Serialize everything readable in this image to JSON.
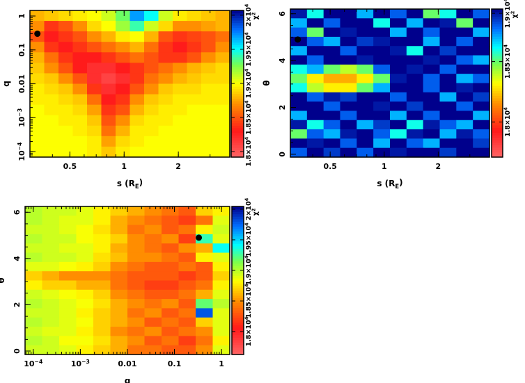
{
  "chart_data": [
    {
      "type": "heatmap",
      "title": "",
      "xlabel": "s (R_E)",
      "ylabel": "q",
      "xscale": "log",
      "yscale": "log",
      "xlim": [
        0.3,
        3.86
      ],
      "ylim": [
        6.9e-05,
        1.46
      ],
      "xticks": [
        {
          "v": 0.5,
          "label": "0.5"
        },
        {
          "v": 1,
          "label": "1"
        },
        {
          "v": 2,
          "label": "2"
        }
      ],
      "yticks": [
        {
          "v": 1,
          "label": "1"
        },
        {
          "v": 0.1,
          "label": "0.1"
        },
        {
          "v": 0.01,
          "label": "0.01"
        },
        {
          "v": 0.001,
          "label": "10^-3"
        },
        {
          "v": 0.0001,
          "label": "10^-4"
        }
      ],
      "colorbar": {
        "title": "χ^2",
        "range": [
          17920,
          20070
        ],
        "ticks": [
          {
            "v": 18000,
            "label": "1.8×10^4"
          },
          {
            "v": 18500,
            "label": "1.85×10^4"
          },
          {
            "v": 19000,
            "label": "1.9×10^4"
          },
          {
            "v": 19500,
            "label": "1.95×10^4"
          },
          {
            "v": 20000,
            "label": "2×10^4"
          }
        ]
      },
      "best_fit_marker": {
        "x": 0.33,
        "y": 0.3
      },
      "grid_rows_top_to_bottom": [
        [
          18800,
          18850,
          18900,
          18950,
          19000,
          19100,
          19300,
          19700,
          19500,
          19100,
          18950,
          18900,
          18850,
          18800
        ],
        [
          18700,
          18400,
          18500,
          18700,
          18900,
          19000,
          19200,
          19400,
          19100,
          18900,
          18700,
          18700,
          18750,
          18800
        ],
        [
          18500,
          18300,
          18400,
          18500,
          18700,
          18800,
          18950,
          19000,
          18800,
          18500,
          18400,
          18450,
          18500,
          18600
        ],
        [
          18700,
          18400,
          18300,
          18400,
          18500,
          18600,
          18700,
          18800,
          18600,
          18400,
          18300,
          18400,
          18500,
          18700
        ],
        [
          18800,
          18600,
          18400,
          18300,
          18300,
          18400,
          18500,
          18600,
          18500,
          18400,
          18400,
          18500,
          18700,
          18800
        ],
        [
          18850,
          18700,
          18500,
          18300,
          18200,
          18200,
          18300,
          18400,
          18500,
          18600,
          18700,
          18800,
          18850,
          18900
        ],
        [
          18900,
          18850,
          18700,
          18500,
          18200,
          18100,
          18200,
          18400,
          18600,
          18700,
          18800,
          18850,
          18900,
          18900
        ],
        [
          18950,
          18900,
          18850,
          18700,
          18400,
          18200,
          18300,
          18500,
          18700,
          18850,
          18900,
          18900,
          18950,
          18950
        ],
        [
          18950,
          18950,
          18900,
          18850,
          18600,
          18300,
          18400,
          18700,
          18850,
          18900,
          18950,
          18950,
          18950,
          18950
        ],
        [
          19000,
          18950,
          18950,
          18900,
          18750,
          18400,
          18500,
          18800,
          18900,
          18950,
          18950,
          19000,
          19000,
          19000
        ],
        [
          19000,
          19000,
          18950,
          18950,
          18850,
          18500,
          18700,
          18900,
          18950,
          18950,
          19000,
          19000,
          19000,
          19000
        ],
        [
          19000,
          19000,
          19000,
          18950,
          18900,
          18600,
          18800,
          18950,
          18950,
          19000,
          19000,
          19000,
          19000,
          19000
        ],
        [
          19000,
          19000,
          19000,
          19000,
          18950,
          18750,
          18900,
          18950,
          19000,
          19000,
          19000,
          19000,
          19000,
          19000
        ],
        [
          19000,
          19000,
          19000,
          19000,
          18950,
          18850,
          18950,
          19000,
          19000,
          19000,
          19000,
          19000,
          19000,
          19000
        ]
      ]
    },
    {
      "type": "heatmap",
      "title": "",
      "xlabel": "s (R_E)",
      "ylabel": "θ",
      "xscale": "log",
      "yscale": "linear",
      "xlim": [
        0.3,
        3.86
      ],
      "ylim": [
        -0.12,
        6.2
      ],
      "xticks": [
        {
          "v": 0.5,
          "label": "0.5"
        },
        {
          "v": 1,
          "label": "1"
        },
        {
          "v": 2,
          "label": "2"
        }
      ],
      "yticks": [
        {
          "v": 0,
          "label": "0"
        },
        {
          "v": 2,
          "label": "2"
        },
        {
          "v": 4,
          "label": "4"
        },
        {
          "v": 6,
          "label": "6"
        }
      ],
      "colorbar": {
        "title": "χ^2",
        "range": [
          17710,
          18935
        ],
        "ticks": [
          {
            "v": 18000,
            "label": "1.8×10^4"
          },
          {
            "v": 18500,
            "label": "1.85×10^4"
          },
          {
            "v": 18900,
            "label": "1.9×10^4"
          }
        ]
      },
      "best_fit_marker": {
        "x": 0.33,
        "y": 4.9
      },
      "grid_rows_top_to_bottom": [
        [
          18900,
          18600,
          18950,
          19000,
          18700,
          18950,
          18800,
          19000,
          18500,
          18600,
          18950,
          18800
        ],
        [
          18700,
          18950,
          18800,
          19000,
          19000,
          18600,
          18950,
          18700,
          19000,
          18900,
          18500,
          18950
        ],
        [
          18800,
          18500,
          19000,
          18900,
          18950,
          19000,
          18700,
          19000,
          18800,
          18950,
          19000,
          18700
        ],
        [
          18950,
          18800,
          18700,
          19000,
          18850,
          18900,
          19000,
          18950,
          18700,
          19000,
          18800,
          18950
        ],
        [
          18700,
          18950,
          19000,
          18800,
          19000,
          18950,
          18900,
          18600,
          19000,
          18850,
          18950,
          19000
        ],
        [
          19000,
          18800,
          18950,
          19000,
          18900,
          19000,
          18950,
          19000,
          18900,
          19000,
          18800,
          18700
        ],
        [
          18600,
          18700,
          18500,
          18400,
          18500,
          18800,
          18950,
          18900,
          19000,
          18800,
          18950,
          19000
        ],
        [
          18500,
          18300,
          18200,
          18200,
          18300,
          18500,
          18900,
          19000,
          18800,
          18950,
          18700,
          18800
        ],
        [
          18600,
          18400,
          18300,
          18300,
          18500,
          18700,
          19000,
          18950,
          18800,
          19000,
          18900,
          18950
        ],
        [
          19000,
          18800,
          18900,
          18850,
          19000,
          18950,
          18800,
          19000,
          18950,
          18700,
          19000,
          18850
        ],
        [
          18950,
          19000,
          18800,
          19000,
          18950,
          18900,
          19000,
          18850,
          19000,
          18950,
          18800,
          19000
        ],
        [
          18700,
          18950,
          19000,
          18800,
          18950,
          19000,
          18700,
          18950,
          18800,
          19000,
          18950,
          18700
        ],
        [
          18900,
          18600,
          18800,
          18950,
          18700,
          18850,
          18950,
          18600,
          18900,
          18800,
          18700,
          18950
        ],
        [
          18500,
          18800,
          18700,
          18900,
          19000,
          18800,
          18600,
          18900,
          18950,
          18700,
          18900,
          18800
        ],
        [
          18950,
          18900,
          19000,
          18800,
          18950,
          18700,
          19000,
          18800,
          18700,
          18950,
          19000,
          18850
        ],
        [
          18800,
          18950,
          18850,
          18950,
          18800,
          19000,
          18900,
          18950,
          19000,
          18850,
          18950,
          19000
        ]
      ]
    },
    {
      "type": "heatmap",
      "title": "",
      "xlabel": "q",
      "ylabel": "θ",
      "xscale": "log",
      "yscale": "linear",
      "xlim": [
        6.7e-05,
        1.5
      ],
      "ylim": [
        -0.15,
        6.25
      ],
      "xticks": [
        {
          "v": 0.0001,
          "label": "10^-4"
        },
        {
          "v": 0.001,
          "label": "10^-3"
        },
        {
          "v": 0.01,
          "label": "0.01"
        },
        {
          "v": 0.1,
          "label": "0.1"
        },
        {
          "v": 1,
          "label": "1"
        }
      ],
      "yticks": [
        {
          "v": 0,
          "label": "0"
        },
        {
          "v": 2,
          "label": "2"
        },
        {
          "v": 4,
          "label": "4"
        },
        {
          "v": 6,
          "label": "6"
        }
      ],
      "colorbar": {
        "title": "χ^2",
        "range": [
          17625,
          20045
        ],
        "ticks": [
          {
            "v": 18000,
            "label": "1.8×10^4"
          },
          {
            "v": 18500,
            "label": "1.85×10^4"
          },
          {
            "v": 19000,
            "label": "1.9×10^4"
          },
          {
            "v": 19500,
            "label": "1.95×10^4"
          },
          {
            "v": 20000,
            "label": "2×10^4"
          }
        ]
      },
      "best_fit_marker": {
        "x": 0.33,
        "y": 4.9
      },
      "grid_rows_top_to_bottom": [
        [
          19000,
          18950,
          18950,
          18900,
          18800,
          18700,
          18600,
          18500,
          18400,
          18300,
          18700,
          18800
        ],
        [
          19000,
          18950,
          18900,
          18900,
          18800,
          18600,
          18500,
          18400,
          18300,
          18200,
          18400,
          18900
        ],
        [
          18950,
          18950,
          18900,
          18850,
          18750,
          18600,
          18400,
          18500,
          18300,
          18400,
          18800,
          18950
        ],
        [
          19000,
          18950,
          18950,
          18850,
          18800,
          18700,
          18500,
          18400,
          18500,
          18200,
          19300,
          18900
        ],
        [
          18950,
          18950,
          18900,
          18900,
          18800,
          18600,
          18500,
          18400,
          18300,
          18500,
          18600,
          19400
        ],
        [
          19000,
          18950,
          18950,
          18900,
          18750,
          18650,
          18500,
          18500,
          18400,
          18300,
          18800,
          18900
        ],
        [
          18900,
          18900,
          18850,
          18800,
          18700,
          18500,
          18400,
          18300,
          18300,
          18400,
          18300,
          18800
        ],
        [
          18700,
          18600,
          18500,
          18500,
          18500,
          18400,
          18300,
          18300,
          18300,
          18200,
          18300,
          18700
        ],
        [
          18800,
          18700,
          18700,
          18600,
          18600,
          18400,
          18300,
          18200,
          18200,
          18300,
          18400,
          18800
        ],
        [
          18950,
          18900,
          18850,
          18800,
          18700,
          18500,
          18400,
          18300,
          18300,
          18400,
          18600,
          18900
        ],
        [
          19000,
          18950,
          18900,
          18850,
          18750,
          18600,
          18500,
          18400,
          18500,
          18300,
          19200,
          19000
        ],
        [
          18950,
          18950,
          18900,
          18800,
          18700,
          18600,
          18400,
          18500,
          18300,
          18400,
          19800,
          18900
        ],
        [
          19000,
          18950,
          18900,
          18850,
          18700,
          18600,
          18500,
          18300,
          18400,
          18300,
          18700,
          18900
        ],
        [
          18950,
          18900,
          18900,
          18800,
          18700,
          18500,
          18400,
          18500,
          18300,
          18400,
          18500,
          18900
        ],
        [
          19000,
          18950,
          18850,
          18850,
          18750,
          18600,
          18500,
          18300,
          18400,
          18200,
          18400,
          18800
        ],
        [
          18950,
          18950,
          18900,
          18800,
          18700,
          18600,
          18400,
          18400,
          18300,
          18300,
          18500,
          18900
        ]
      ]
    }
  ],
  "colors": {
    "low": "#ff6666",
    "mid": "#ffff00",
    "high": "#00008b",
    "marker": "#000000"
  }
}
